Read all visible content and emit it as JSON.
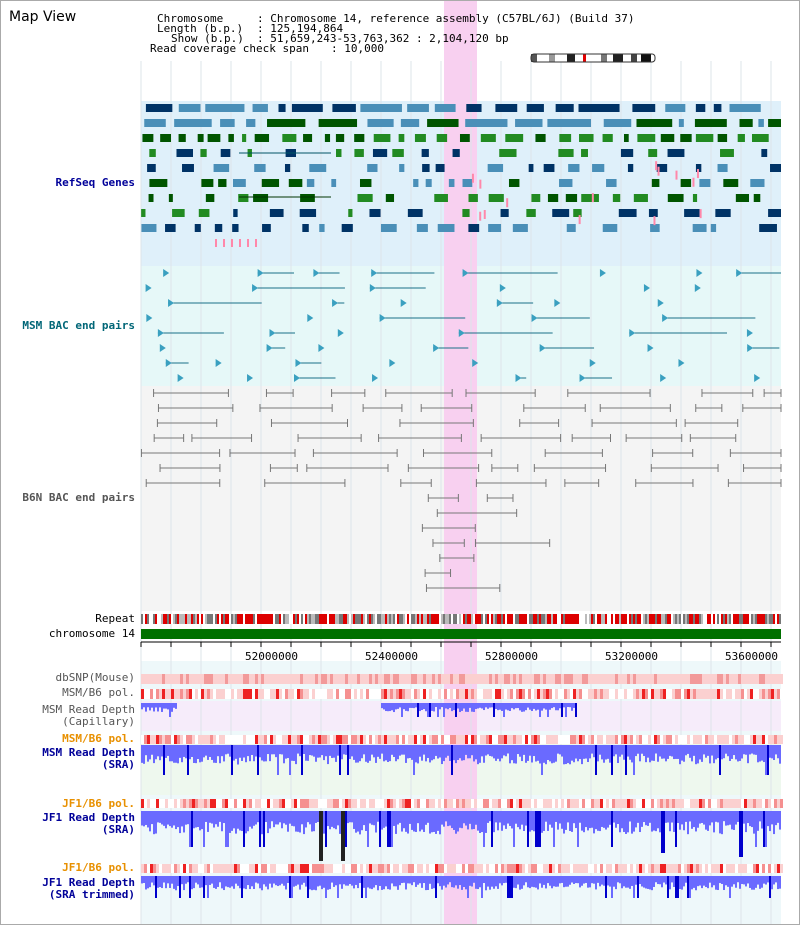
{
  "title": "Map View",
  "header": {
    "chromosome_label": "Chromosome",
    "chromosome_value": ": Chromosome 14, reference assembly (C57BL/6J) (Build 37)",
    "length_label": "Length (b.p.)",
    "length_value": ": 125,194,864",
    "show_label": "Show (b.p.)",
    "show_value": ": 51,659,243-53,763,362 : 2,104,120 bp",
    "coverage_label": "Read coverage check span",
    "coverage_value": ": 10,000"
  },
  "tracks": {
    "refseq": "RefSeq Genes",
    "msm_bac": "MSM BAC end pairs",
    "b6n_bac": "B6N BAC end pairs",
    "repeat": "Repeat",
    "chromosome": "chromosome 14",
    "dbsnp": "dbSNP(Mouse)",
    "msm_pol": "MSM/B6 pol.",
    "msm_depth_cap_1": "MSM Read Depth",
    "msm_depth_cap_2": "(Capillary)",
    "msm_pol_2": "MSM/B6 pol.",
    "msm_depth_sra_1": "MSM Read Depth",
    "msm_depth_sra_2": "(SRA)",
    "jf1_pol": "JF1/B6 pol.",
    "jf1_depth_sra_1": "JF1 Read Depth",
    "jf1_depth_sra_2": "(SRA)",
    "jf1_pol_2": "JF1/B6 pol.",
    "jf1_depth_trim_1": "JF1 Read Depth",
    "jf1_depth_trim_2": "(SRA trimmed)"
  },
  "axis_ticks": [
    "52000000",
    "52400000",
    "52800000",
    "53200000",
    "53600000"
  ],
  "colors": {
    "label_blue": "#000099",
    "label_teal": "#006677",
    "label_gray": "#555555",
    "label_orange": "#e89000",
    "highlight": "#f8d0f0",
    "refseq_bg": "#dff0fa",
    "msm_bg": "#e6f8f8",
    "b6n_bg": "#f4f4f4",
    "chromosome_green": "#007000",
    "depth_blue": "#3030ff"
  }
}
